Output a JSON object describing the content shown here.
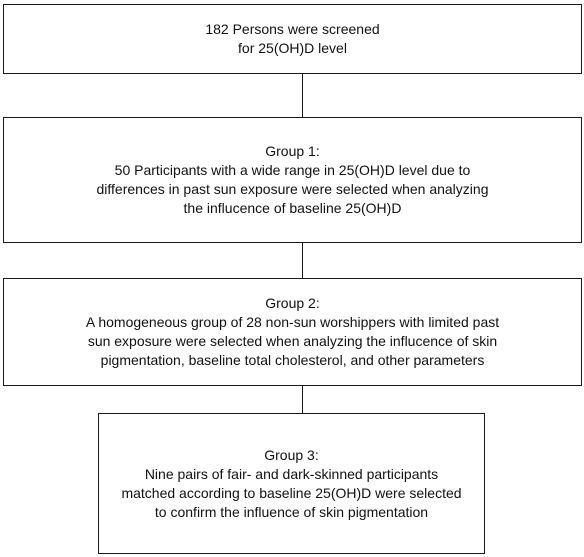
{
  "flowchart": {
    "screening_box": {
      "lines": [
        "182 Persons were screened",
        "for 25(OH)D level"
      ]
    },
    "group1_box": {
      "lines": [
        "Group 1:",
        "50 Participants with a wide range in 25(OH)D level due to",
        "differences in past sun exposure were selected when analyzing",
        "the influcence of baseline 25(OH)D"
      ]
    },
    "group2_box": {
      "lines": [
        "Group 2:",
        "A homogeneous group of 28 non-sun worshippers with limited past",
        "sun exposure were selected when analyzing the influcence of skin",
        "pigmentation, baseline total cholesterol, and other parameters"
      ]
    },
    "group3_box": {
      "lines": [
        "Group 3:",
        "Nine pairs of fair- and dark-skinned participants",
        "matched according to baseline 25(OH)D were selected",
        "to confirm the influence of skin pigmentation"
      ]
    }
  }
}
